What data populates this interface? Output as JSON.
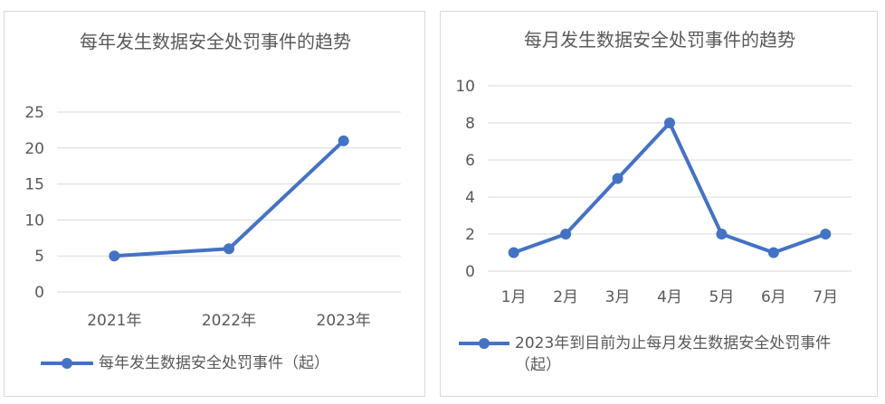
{
  "chart_data": [
    {
      "type": "line",
      "title": "每年发生数据安全处罚事件的趋势",
      "categories": [
        "2021年",
        "2022年",
        "2023年"
      ],
      "series": [
        {
          "name": "每年发生数据安全处罚事件（起）",
          "values": [
            5,
            6,
            21
          ]
        }
      ],
      "ylim": [
        0,
        25
      ],
      "yticks": [
        0,
        5,
        10,
        15,
        20,
        25
      ],
      "grid": true,
      "legend": "bottom",
      "color": "#4472c4"
    },
    {
      "type": "line",
      "title": "每月发生数据安全处罚事件的趋势",
      "categories": [
        "1月",
        "2月",
        "3月",
        "4月",
        "5月",
        "6月",
        "7月"
      ],
      "series": [
        {
          "name": "2023年到目前为止每月发生数据安全处罚事件（起）",
          "values": [
            1,
            2,
            5,
            8,
            2,
            1,
            2
          ]
        }
      ],
      "ylim": [
        0,
        10
      ],
      "yticks": [
        0,
        2,
        4,
        6,
        8,
        10
      ],
      "grid": true,
      "legend": "bottom",
      "color": "#4472c4"
    }
  ]
}
